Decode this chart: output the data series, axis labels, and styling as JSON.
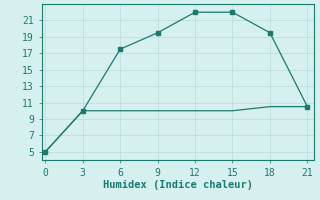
{
  "xlabel": "Humidex (Indice chaleur)",
  "bg_color": "#d6f0f0",
  "plot_bg_color": "#d6f0f0",
  "grid_color": "#c0dede",
  "line_color": "#1a7a6e",
  "axis_color": "#1a7a6e",
  "line1_x": [
    0,
    3,
    6,
    9,
    12,
    15,
    18,
    21
  ],
  "line1_y": [
    5,
    10,
    17.5,
    19.5,
    22,
    22,
    19.5,
    10.5
  ],
  "line2_x": [
    0,
    3,
    6,
    9,
    12,
    15,
    18,
    21
  ],
  "line2_y": [
    5,
    10,
    10,
    10,
    10,
    10,
    10.5,
    10.5
  ],
  "xlim": [
    -0.3,
    21.5
  ],
  "ylim": [
    4.0,
    23.0
  ],
  "xticks": [
    0,
    3,
    6,
    9,
    12,
    15,
    18,
    21
  ],
  "yticks": [
    5,
    7,
    9,
    11,
    13,
    15,
    17,
    19,
    21
  ],
  "tick_fontsize": 7,
  "xlabel_fontsize": 7.5
}
